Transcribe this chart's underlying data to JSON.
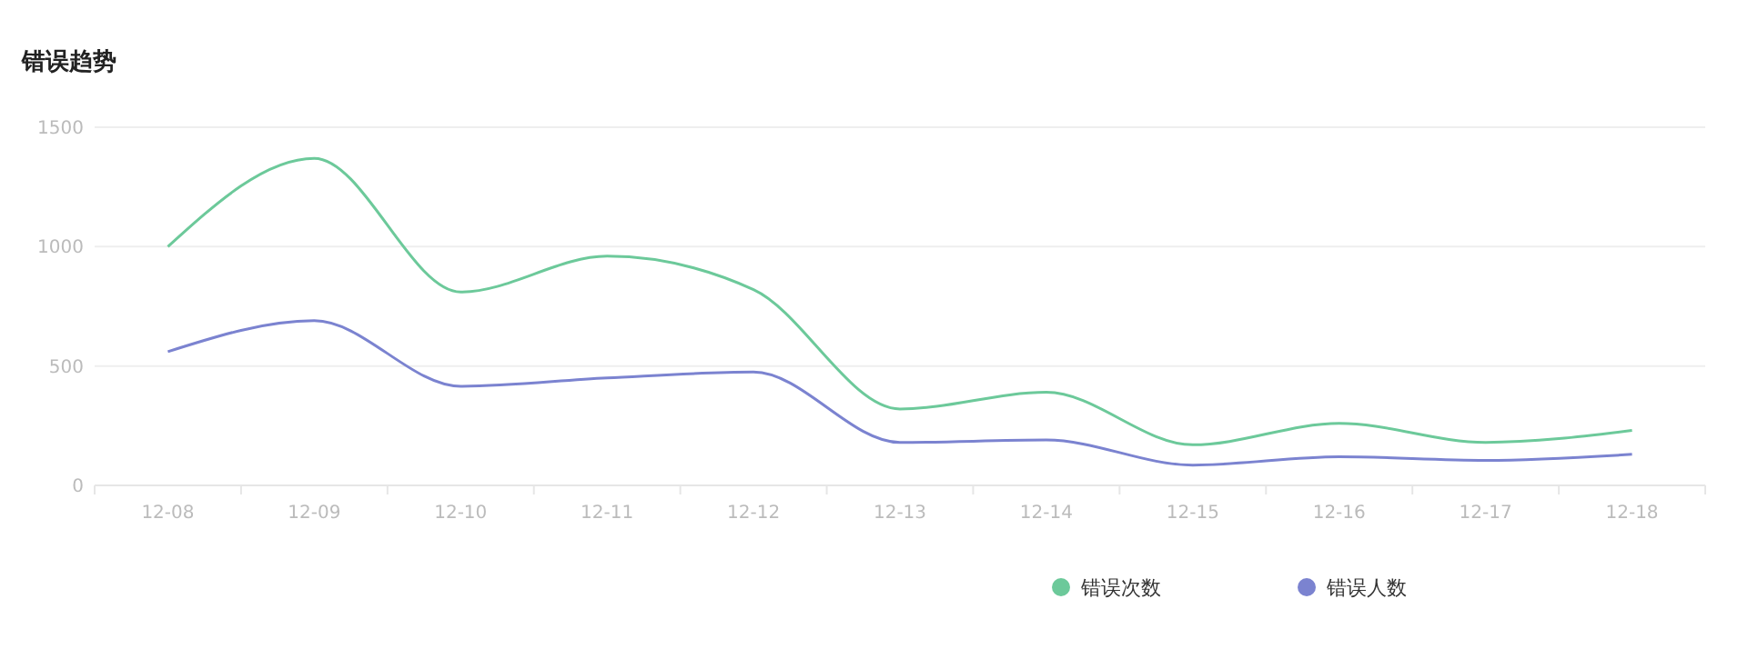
{
  "chart_data": {
    "type": "line",
    "title": "错误趋势",
    "categories": [
      "12-08",
      "12-09",
      "12-10",
      "12-11",
      "12-12",
      "12-13",
      "12-14",
      "12-15",
      "12-16",
      "12-17",
      "12-18"
    ],
    "series": [
      {
        "name": "错误次数",
        "color": "#6cc99a",
        "values": [
          1000,
          1370,
          810,
          960,
          820,
          320,
          390,
          170,
          260,
          180,
          230
        ]
      },
      {
        "name": "错误人数",
        "color": "#7b83d0",
        "values": [
          560,
          690,
          415,
          450,
          475,
          180,
          190,
          85,
          120,
          105,
          130
        ]
      }
    ],
    "ylim": [
      0,
      1500
    ],
    "yticks": [
      0,
      500,
      1000,
      1500
    ],
    "grid": "y",
    "legend": "bottom",
    "marker": "none",
    "line_style": "solid"
  }
}
